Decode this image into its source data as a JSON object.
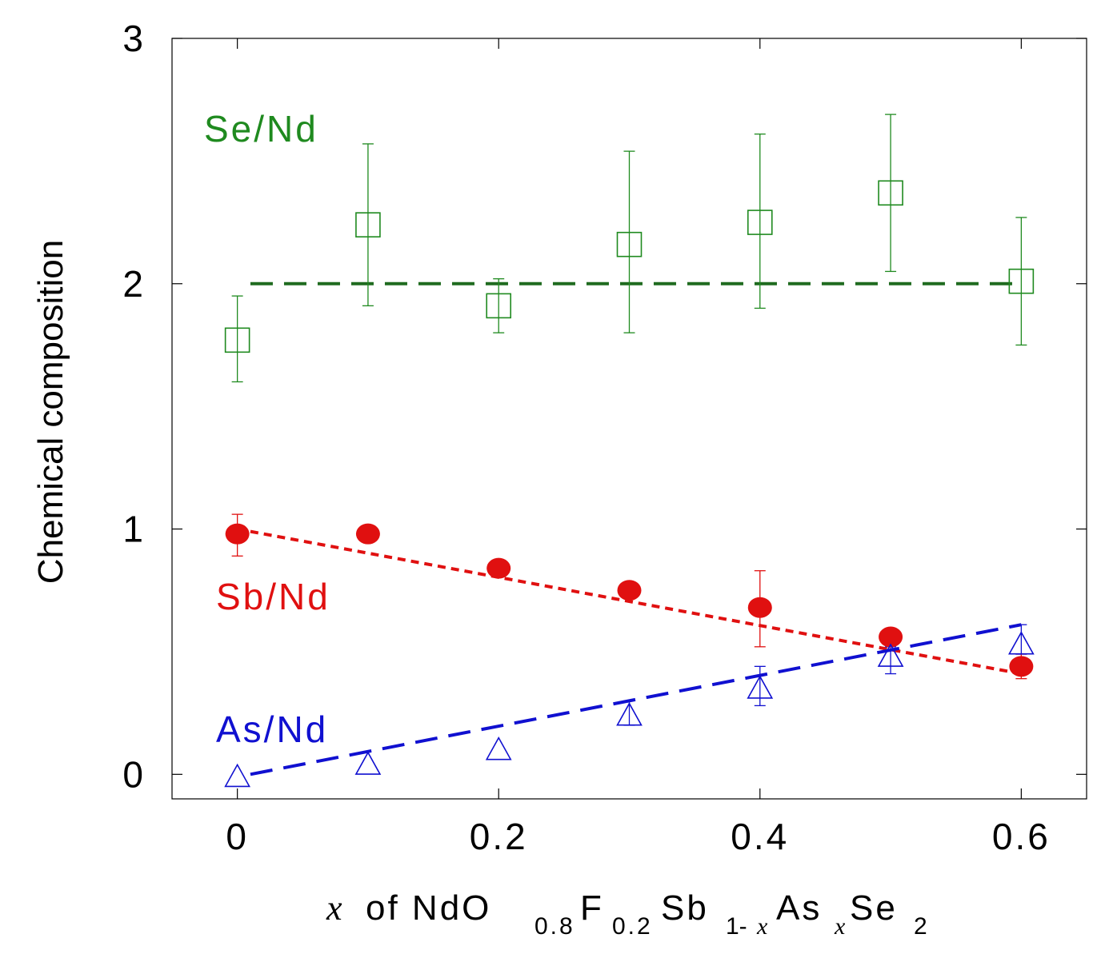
{
  "chart_data": {
    "type": "scatter",
    "title": "",
    "ylabel": "Chemical composition",
    "xlabel": {
      "prefix": "x",
      "text": "of NdO",
      "sub1": "0.8",
      "f": "F",
      "sub2": "0.2",
      "sb": "Sb",
      "sub3a": "1-",
      "sub3b": "x",
      "as": "As",
      "sub4": "x",
      "se": "Se",
      "sub5": "2"
    },
    "xlim": [
      -0.05,
      0.65
    ],
    "ylim": [
      -0.1,
      3.0
    ],
    "xticks": [
      0,
      0.2,
      0.4,
      0.6
    ],
    "xtick_labels": [
      "0",
      "0.2",
      "0.4",
      "0.6"
    ],
    "yticks": [
      0,
      1,
      2,
      3
    ],
    "ytick_labels": [
      "0",
      "1",
      "2",
      "3"
    ],
    "series": [
      {
        "name": "Se/Nd",
        "label": "Se/Nd",
        "color": "#1f8a1f",
        "marker": "open-square",
        "x": [
          0,
          0.1,
          0.2,
          0.3,
          0.4,
          0.5,
          0.6
        ],
        "y": [
          1.77,
          2.24,
          1.91,
          2.16,
          2.25,
          2.37,
          2.01
        ],
        "err_low": [
          1.6,
          1.91,
          1.8,
          1.8,
          1.9,
          2.05,
          1.75
        ],
        "err_high": [
          1.95,
          2.57,
          2.02,
          2.54,
          2.61,
          2.69,
          2.27
        ],
        "fit": {
          "x": [
            0.01,
            0.6
          ],
          "y": [
            2.0,
            2.0
          ],
          "style": "long-dash",
          "color": "#1f6b1f"
        }
      },
      {
        "name": "Sb/Nd",
        "label": "Sb/Nd",
        "color": "#e01010",
        "marker": "filled-circle",
        "x": [
          0,
          0.1,
          0.2,
          0.3,
          0.4,
          0.5,
          0.6
        ],
        "y": [
          0.98,
          0.98,
          0.84,
          0.75,
          0.68,
          0.56,
          0.44
        ],
        "err_low": [
          0.89,
          null,
          null,
          null,
          0.52,
          null,
          0.39
        ],
        "err_high": [
          1.06,
          null,
          null,
          null,
          0.83,
          null,
          0.49
        ],
        "fit": {
          "x": [
            0.01,
            0.6
          ],
          "y": [
            0.99,
            0.41
          ],
          "style": "short-dash",
          "color": "#e01010"
        }
      },
      {
        "name": "As/Nd",
        "label": "As/Nd",
        "color": "#1010d0",
        "marker": "open-triangle",
        "x": [
          0,
          0.1,
          0.2,
          0.3,
          0.4,
          0.5,
          0.6
        ],
        "y": [
          -0.01,
          0.04,
          0.1,
          0.24,
          0.35,
          0.48,
          0.53
        ],
        "err_low": [
          null,
          null,
          null,
          0.2,
          0.28,
          0.41,
          0.49
        ],
        "err_high": [
          null,
          null,
          null,
          0.3,
          0.44,
          0.52,
          0.61
        ],
        "fit": {
          "x": [
            0.01,
            0.6
          ],
          "y": [
            0.0,
            0.61
          ],
          "style": "long-dash",
          "color": "#1010d0"
        }
      }
    ]
  }
}
